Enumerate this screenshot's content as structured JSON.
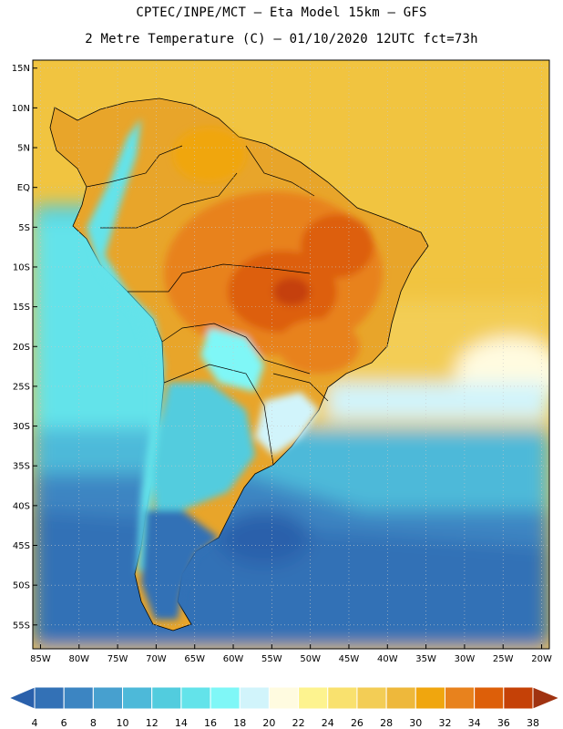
{
  "header": {
    "title_line1": "CPTEC/INPE/MCT –  Eta Model 15km – GFS",
    "title_line2": "2 Metre Temperature (C) – 01/10/2020 12UTC fct=73h"
  },
  "map": {
    "lat_labels": [
      "15N",
      "10N",
      "5N",
      "EQ",
      "5S",
      "10S",
      "15S",
      "20S",
      "25S",
      "30S",
      "35S",
      "40S",
      "45S",
      "50S",
      "55S"
    ],
    "lon_labels": [
      "85W",
      "80W",
      "75W",
      "70W",
      "65W",
      "60W",
      "55W",
      "50W",
      "45W",
      "40W",
      "35W",
      "30W",
      "25W",
      "20W"
    ],
    "extent": {
      "lon_min": -86,
      "lon_max": -19,
      "lat_min": -58,
      "lat_max": 16
    }
  },
  "colorbar": {
    "ticks": [
      "4",
      "6",
      "8",
      "10",
      "12",
      "14",
      "16",
      "18",
      "20",
      "22",
      "24",
      "26",
      "28",
      "30",
      "32",
      "34",
      "36",
      "38"
    ],
    "colors": [
      "#2a60ab",
      "#3371b6",
      "#3c85c2",
      "#47a0cf",
      "#4db9d9",
      "#52ccde",
      "#63e3ea",
      "#7ff7f7",
      "#d1f4fb",
      "#fffbe0",
      "#fdf38f",
      "#f9e16e",
      "#f3cd55",
      "#eeb83b",
      "#f0a60e",
      "#e8821d",
      "#dd5f09",
      "#c54107",
      "#a03311"
    ]
  }
}
